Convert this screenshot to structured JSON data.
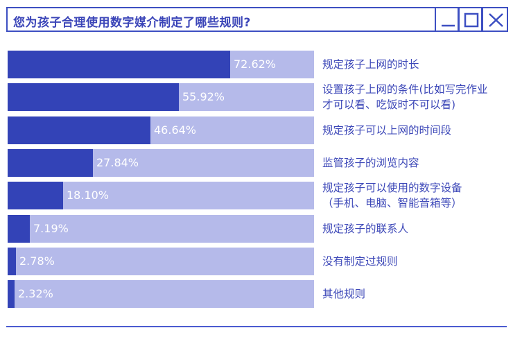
{
  "window": {
    "title": "您为孩子合理使用数字媒介制定了哪些规则?",
    "buttons": [
      {
        "name": "minimize",
        "icon": "minimize-icon"
      },
      {
        "name": "maximize",
        "icon": "maximize-icon"
      },
      {
        "name": "close",
        "icon": "close-icon"
      }
    ]
  },
  "colors": {
    "bar_fill": "#3343b7",
    "bar_background": "#b5baea",
    "label_text": "#3d48b8",
    "border": "#3d4fc2"
  },
  "chart_data": {
    "type": "bar",
    "orientation": "horizontal",
    "title": "您为孩子合理使用数字媒介制定了哪些规则?",
    "xlim": [
      0,
      100
    ],
    "unit": "%",
    "categories": [
      "规定孩子上网的时长",
      "设置孩子上网的条件(比如写完作业\n才可以看、吃饭时不可以看)",
      "规定孩子可以上网的时间段",
      "监管孩子的浏览内容",
      "规定孩子可以使用的数字设备\n（手机、电脑、智能音箱等）",
      "规定孩子的联系人",
      "没有制定过规则",
      "其他规则"
    ],
    "values": [
      72.62,
      55.92,
      46.64,
      27.84,
      18.1,
      7.19,
      2.78,
      2.32
    ],
    "value_labels": [
      "72.62%",
      "55.92%",
      "46.64%",
      "27.84%",
      "18.10%",
      "7.19%",
      "2.78%",
      "2.32%"
    ]
  }
}
